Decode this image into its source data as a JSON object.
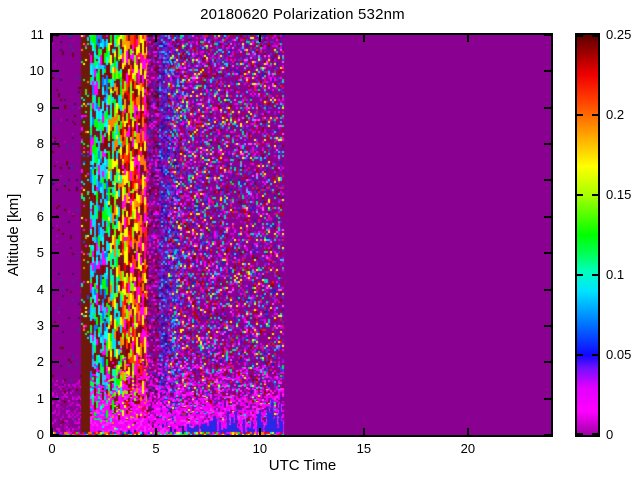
{
  "figure": {
    "title": "20180620 Polarization 532nm",
    "background": "#ffffff"
  },
  "axes": {
    "xlabel": "UTC Time",
    "ylabel": "Altitude [km]",
    "x_range": [
      0,
      24
    ],
    "y_range": [
      0,
      11
    ],
    "x_tick_values": [
      0,
      5,
      10,
      15,
      20
    ],
    "x_tick_labels": [
      "0",
      "5",
      "10",
      "15",
      "20"
    ],
    "y_tick_values": [
      0,
      1,
      2,
      3,
      4,
      5,
      6,
      7,
      8,
      9,
      10,
      11
    ],
    "y_tick_labels": [
      "0",
      "1",
      "2",
      "3",
      "4",
      "5",
      "6",
      "7",
      "8",
      "9",
      "10",
      "11"
    ]
  },
  "colorbar": {
    "position": "right",
    "range": [
      0,
      0.25
    ],
    "tick_values": [
      0,
      0.05,
      0.1,
      0.15,
      0.2,
      0.25
    ],
    "tick_labels": [
      "0",
      "0.05",
      "0.1",
      "0.15",
      "0.2",
      "0.25"
    ]
  },
  "chart_data": {
    "type": "heatmap",
    "title": "20180620 Polarization 532nm",
    "xlabel": "UTC Time",
    "ylabel": "Altitude [km]",
    "x_range": [
      0,
      24
    ],
    "y_range": [
      0,
      11
    ],
    "value_range": [
      0,
      0.25
    ],
    "data_coverage_utc": [
      0,
      11.15
    ],
    "no_data_color": "#8A0090",
    "grid": false,
    "seed": 20180620,
    "colormap_stops": [
      {
        "v": 0.0,
        "c": "#A000A8"
      },
      {
        "v": 0.015,
        "c": "#FF00FF"
      },
      {
        "v": 0.03,
        "c": "#E000FF"
      },
      {
        "v": 0.042,
        "c": "#7010FF"
      },
      {
        "v": 0.05,
        "c": "#1008FF"
      },
      {
        "v": 0.07,
        "c": "#0078FF"
      },
      {
        "v": 0.09,
        "c": "#00E4FF"
      },
      {
        "v": 0.102,
        "c": "#00FFC0"
      },
      {
        "v": 0.112,
        "c": "#00FF60"
      },
      {
        "v": 0.125,
        "c": "#00FF00"
      },
      {
        "v": 0.15,
        "c": "#A8FF00"
      },
      {
        "v": 0.168,
        "c": "#FFFF00"
      },
      {
        "v": 0.19,
        "c": "#FF9800"
      },
      {
        "v": 0.21,
        "c": "#FF3C00"
      },
      {
        "v": 0.225,
        "c": "#F00000"
      },
      {
        "v": 0.25,
        "c": "#5C0000"
      }
    ],
    "regions": [
      {
        "type": "fill",
        "utc": [
          0,
          24
        ],
        "alt": [
          0,
          11
        ],
        "color": "#8A0090"
      },
      {
        "type": "speckle",
        "utc": [
          0,
          1.4
        ],
        "alt": [
          0,
          11
        ],
        "density": 0.05,
        "colors": [
          "#600008",
          "#4A0060",
          "#2838A0",
          "#B000B0",
          "#700000"
        ]
      },
      {
        "type": "speckle",
        "utc": [
          0,
          1.4
        ],
        "alt": [
          0,
          1.5
        ],
        "density": 0.3,
        "colors": [
          "#C400C8",
          "#E000E0",
          "#A800B0"
        ]
      },
      {
        "type": "fill",
        "utc": [
          1.4,
          1.85
        ],
        "alt": [
          0,
          11
        ],
        "color": "#6E1A08"
      },
      {
        "type": "speckle",
        "utc": [
          1.4,
          1.85
        ],
        "alt": [
          2.6,
          11
        ],
        "density": 0.16,
        "colors": [
          "#00E0FF",
          "#00FF40",
          "#FF00FF",
          "#2040FF",
          "#FFFF00",
          "#FF8000"
        ]
      },
      {
        "type": "vstreaks",
        "utc": [
          1.85,
          4.55
        ],
        "alt": [
          0.07,
          11
        ],
        "density": 0.8,
        "bg": "#781024",
        "palettes": [
          {
            "until": 0.3,
            "colors": [
              "#00FFFF",
              "#00E0FF",
              "#00FF50",
              "#0080FF",
              "#8B0000",
              "#FF00FF",
              "#00FF00",
              "#20C0FF"
            ]
          },
          {
            "until": 0.55,
            "colors": [
              "#00FF00",
              "#70FF00",
              "#FFFF00",
              "#00FFB0",
              "#8B0000",
              "#00E0FF",
              "#FF8000"
            ]
          },
          {
            "until": 0.8,
            "colors": [
              "#FFFF00",
              "#FFA000",
              "#FF4000",
              "#80FF00",
              "#FF0000",
              "#8B0000",
              "#FF00FF"
            ]
          },
          {
            "until": 1.01,
            "colors": [
              "#FF2000",
              "#FF00A0",
              "#8B0000",
              "#FF8000",
              "#FF00FF",
              "#FFFF00",
              "#E00060"
            ]
          }
        ]
      },
      {
        "type": "speckle",
        "utc": [
          4.55,
          5.15
        ],
        "alt": [
          0,
          11
        ],
        "density": 0.75,
        "colors": [
          "#8B0040",
          "#A00060",
          "#C000C0",
          "#3030C0",
          "#800080",
          "#FF00FF",
          "#600020"
        ]
      },
      {
        "type": "speckle",
        "utc": [
          5.15,
          6.05
        ],
        "alt": [
          0,
          11
        ],
        "density": 0.65,
        "colors": [
          "#3030D0",
          "#5050FF",
          "#2020A0",
          "#7020E0",
          "#B000B0",
          "#00C0FF",
          "#4000A0"
        ]
      },
      {
        "type": "fadenoise",
        "utc": [
          5.6,
          11.15
        ],
        "alt": [
          0,
          11
        ],
        "density_start": 0.55,
        "density_end": 0.38,
        "colors": [
          "#FF00FF",
          "#E000E0",
          "#D000D0",
          "#5030C8",
          "#4040D8",
          "#6828C0",
          "#00D8FF",
          "#00E080",
          "#E02020",
          "#8B0000",
          "#C00000",
          "#FF50FF",
          "#2020C0",
          "#FFFF00"
        ]
      },
      {
        "type": "haze",
        "utc": [
          1.85,
          11.15
        ],
        "alt": [
          0,
          2.4
        ],
        "gamma": 1.6,
        "colors": [
          "#FF00FF",
          "#F600F6",
          "#FF28FF",
          "#EC00EC"
        ]
      },
      {
        "type": "spikes",
        "utc": [
          2.0,
          6.5
        ],
        "max_alt": 0.28,
        "density": 0.55,
        "color": "#181890"
      },
      {
        "type": "spikes",
        "utc": [
          6.5,
          11.12
        ],
        "max_alt": 1.05,
        "density": 0.9,
        "color": "#2828E8"
      },
      {
        "type": "speckle",
        "utc": [
          0,
          11.15
        ],
        "alt": [
          0,
          0.08
        ],
        "density": 0.8,
        "colors": [
          "#00FF00",
          "#FFFF00",
          "#FF0000",
          "#00FFFF",
          "#FF00FF",
          "#FF8000",
          "#0040FF"
        ]
      }
    ]
  }
}
